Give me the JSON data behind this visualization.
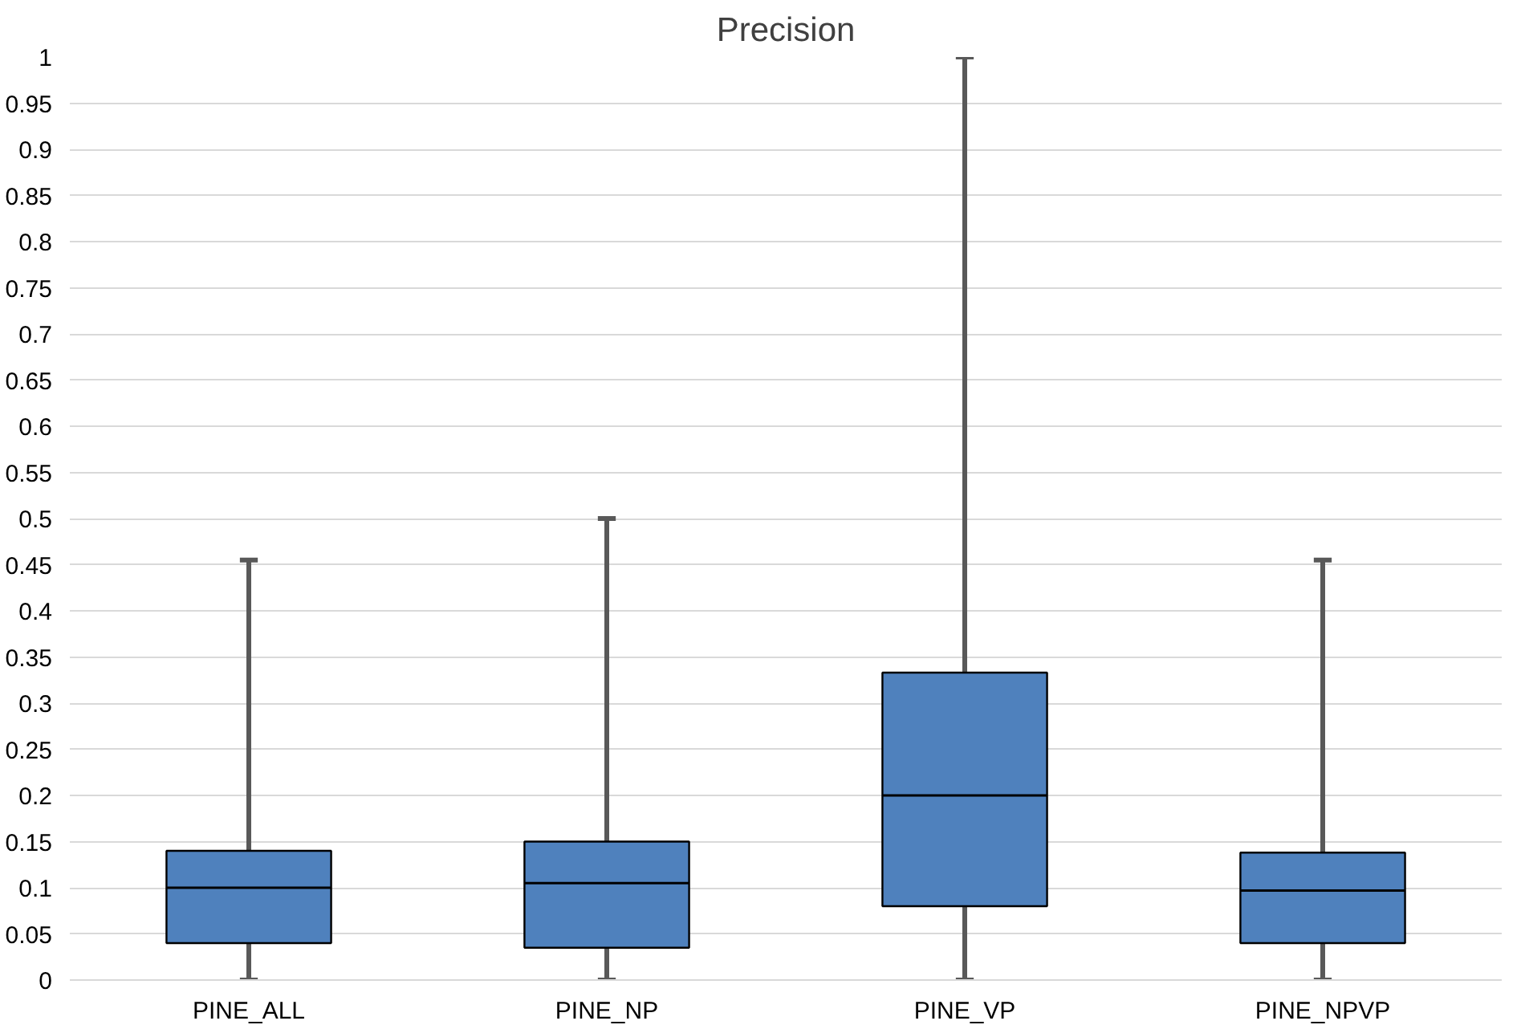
{
  "chart_data": {
    "type": "box",
    "title": "Precision",
    "categories": [
      "PINE_ALL",
      "PINE_NP",
      "PINE_VP",
      "PINE_NPVP"
    ],
    "color": "#4f81bd",
    "boxes": [
      {
        "low": 0,
        "q1": 0.04,
        "median": 0.1,
        "q3": 0.14,
        "high": 0.455
      },
      {
        "low": 0,
        "q1": 0.035,
        "median": 0.105,
        "q3": 0.15,
        "high": 0.5
      },
      {
        "low": 0,
        "q1": 0.08,
        "median": 0.2,
        "q3": 0.333,
        "high": 1
      },
      {
        "low": 0,
        "q1": 0.04,
        "median": 0.097,
        "q3": 0.138,
        "high": 0.455
      }
    ],
    "ylim": [
      0,
      1
    ],
    "yticks": [
      0,
      0.05,
      0.1,
      0.15,
      0.2,
      0.25,
      0.3,
      0.35,
      0.4,
      0.45,
      0.5,
      0.55,
      0.6,
      0.65,
      0.7,
      0.75,
      0.8,
      0.85,
      0.9,
      0.95,
      1
    ],
    "grid": "y"
  }
}
